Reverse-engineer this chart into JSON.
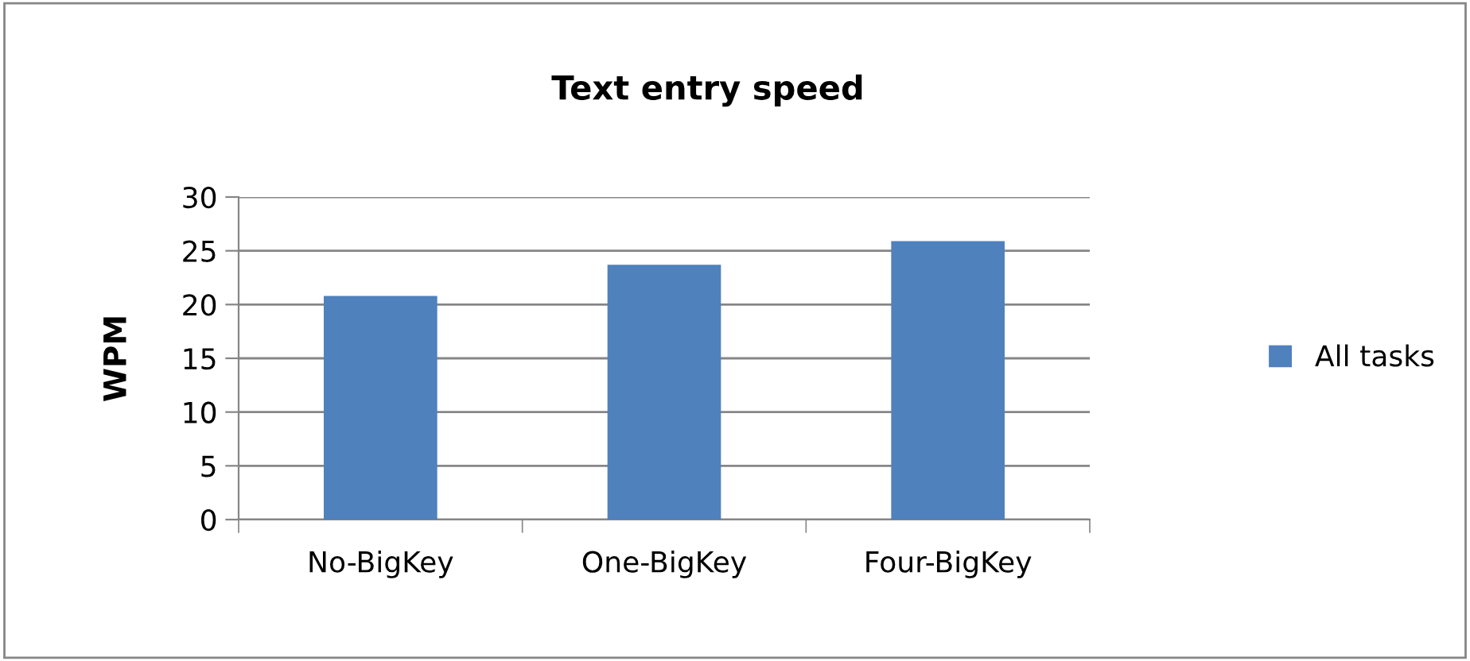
{
  "chart_data": {
    "type": "bar",
    "title": "Text entry speed",
    "ylabel": "WPM",
    "categories": [
      "No-BigKey",
      "One-BigKey",
      "Four-BigKey"
    ],
    "series": [
      {
        "name": "All tasks",
        "color": "#4f81bd",
        "values": [
          20.8,
          23.7,
          25.9
        ]
      }
    ],
    "ylim": [
      0,
      30
    ],
    "yticks": [
      0,
      5,
      10,
      15,
      20,
      25,
      30
    ],
    "grid": "y",
    "legend": "right"
  }
}
